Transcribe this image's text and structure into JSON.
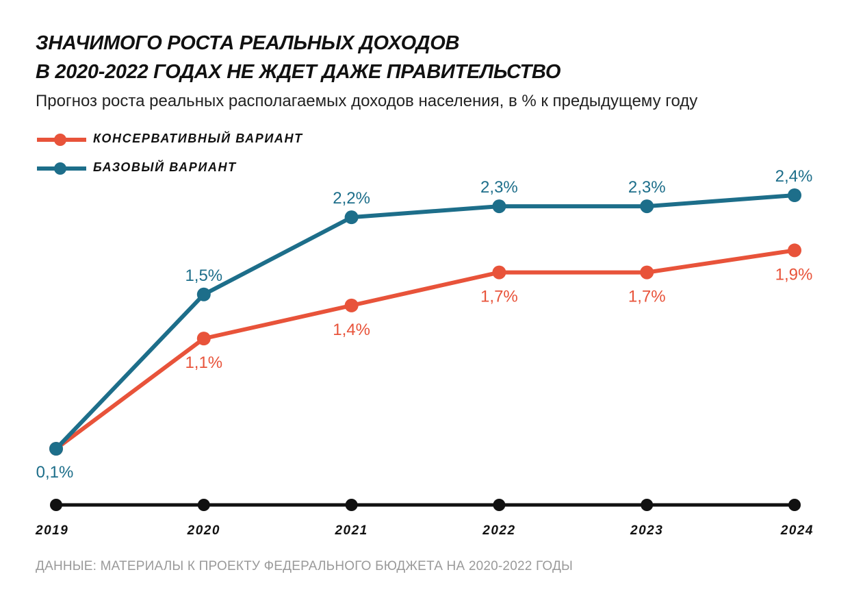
{
  "header": {
    "title_line1": "ЗНАЧИМОГО РОСТА РЕАЛЬНЫХ ДОХОДОВ",
    "title_line2": "В 2020-2022 ГОДАХ НЕ ЖДЕТ ДАЖЕ ПРАВИТЕЛЬСТВО",
    "subtitle": "Прогноз роста реальных располагаемых доходов населения, в % к предыдущему году"
  },
  "legend": {
    "items": [
      {
        "label": "КОНСЕРВАТИВНЫЙ ВАРИАНТ",
        "color": "#e8533a"
      },
      {
        "label": "БАЗОВЫЙ ВАРИАНТ",
        "color": "#1d6e8a"
      }
    ]
  },
  "source": "ДАННЫЕ: МАТЕРИАЛЫ К ПРОЕКТУ ФЕДЕРАЛЬНОГО БЮДЖЕТА НА 2020-2022 ГОДЫ",
  "chart_data": {
    "type": "line",
    "x": [
      "2019",
      "2020",
      "2021",
      "2022",
      "2023",
      "2024"
    ],
    "series": [
      {
        "name": "БАЗОВЫЙ ВАРИАНТ",
        "color": "#1d6e8a",
        "values": [
          0.1,
          1.5,
          2.2,
          2.3,
          2.3,
          2.4
        ],
        "labels": [
          "0,1%",
          "1,5%",
          "2,2%",
          "2,3%",
          "2,3%",
          "2,4%"
        ],
        "label_position": "above"
      },
      {
        "name": "КОНСЕРВАТИВНЫЙ ВАРИАНТ",
        "color": "#e8533a",
        "values": [
          0.1,
          1.1,
          1.4,
          1.7,
          1.7,
          1.9
        ],
        "labels": [
          "",
          "1,1%",
          "1,4%",
          "1,7%",
          "1,7%",
          "1,9%"
        ],
        "label_position": "below"
      }
    ],
    "axis_color": "#111111",
    "grid": false,
    "legend_position": "top-left"
  }
}
